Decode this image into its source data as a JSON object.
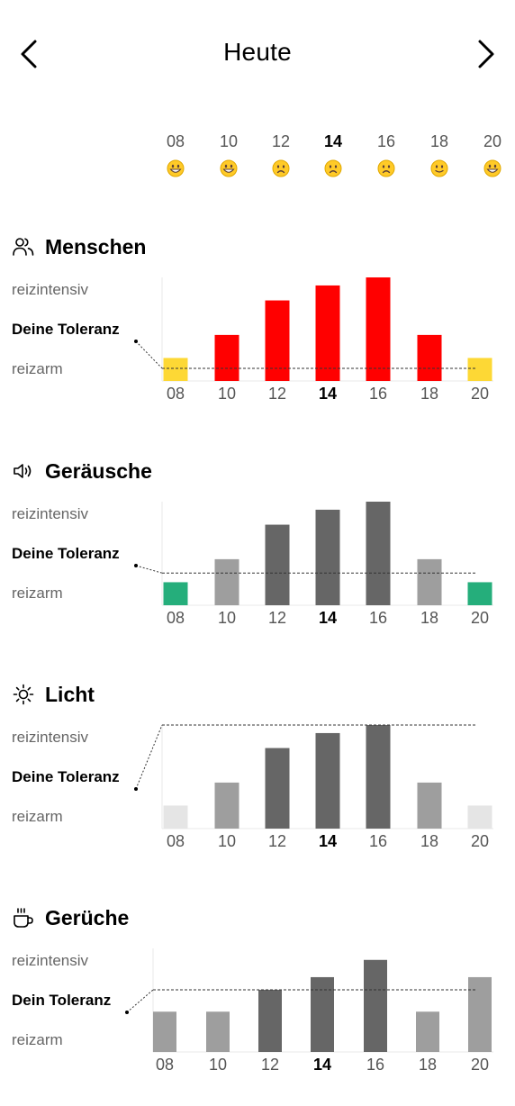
{
  "header": {
    "title": "Heute"
  },
  "timeline": {
    "hours": [
      "08",
      "10",
      "12",
      "14",
      "16",
      "18",
      "20"
    ],
    "current_index": 3,
    "moods": [
      "grinning",
      "grinning",
      "frowning",
      "frowning",
      "frowning",
      "slight-smile",
      "grinning"
    ]
  },
  "sections": [
    {
      "id": "menschen",
      "title": "Menschen",
      "icon": "people-icon",
      "axis_high": "reizintensiv",
      "tolerance_label": "Deine Toleranz",
      "axis_low": "reizarm",
      "chart_data": {
        "type": "bar",
        "categories": [
          "08",
          "10",
          "12",
          "14",
          "16",
          "18",
          "20"
        ],
        "values": [
          2,
          4,
          7,
          8.3,
          9,
          4,
          2
        ],
        "tolerance": 1.1,
        "ylim": [
          0,
          9
        ],
        "colors": [
          "#FDD835",
          "#FF0000",
          "#FF0000",
          "#FF0000",
          "#FF0000",
          "#FF0000",
          "#FDD835"
        ]
      }
    },
    {
      "id": "geraeusche",
      "title": "Geräusche",
      "icon": "speaker-icon",
      "axis_high": "reizintensiv",
      "tolerance_label": "Deine Toleranz",
      "axis_low": "reizarm",
      "chart_data": {
        "type": "bar",
        "categories": [
          "08",
          "10",
          "12",
          "14",
          "16",
          "18",
          "20"
        ],
        "values": [
          2,
          4,
          7,
          8.3,
          9,
          4,
          2
        ],
        "tolerance": 2.8,
        "ylim": [
          0,
          9
        ],
        "colors": [
          "#25AE7B",
          "#9E9E9E",
          "#666666",
          "#666666",
          "#666666",
          "#9E9E9E",
          "#25AE7B"
        ]
      }
    },
    {
      "id": "licht",
      "title": "Licht",
      "icon": "sun-icon",
      "axis_high": "reizintensiv",
      "tolerance_label": "Deine Toleranz",
      "axis_low": "reizarm",
      "chart_data": {
        "type": "bar",
        "categories": [
          "08",
          "10",
          "12",
          "14",
          "16",
          "18",
          "20"
        ],
        "values": [
          2,
          4,
          7,
          8.3,
          9,
          4,
          2
        ],
        "tolerance": 9,
        "ylim": [
          0,
          9
        ],
        "colors": [
          "#E5E5E5",
          "#9E9E9E",
          "#666666",
          "#666666",
          "#666666",
          "#9E9E9E",
          "#E5E5E5"
        ]
      }
    },
    {
      "id": "gerueche",
      "title": "Gerüche",
      "icon": "coffee-cup-icon",
      "axis_high": "reizintensiv",
      "tolerance_label": "Dein Toleranz",
      "axis_low": "reizarm",
      "chart_data": {
        "type": "bar",
        "categories": [
          "08",
          "10",
          "12",
          "14",
          "16",
          "18",
          "20"
        ],
        "values": [
          3.5,
          3.5,
          5.4,
          6.5,
          8,
          3.5,
          6.5
        ],
        "tolerance": 5.4,
        "ylim": [
          0,
          9
        ],
        "colors": [
          "#9E9E9E",
          "#9E9E9E",
          "#666666",
          "#666666",
          "#666666",
          "#9E9E9E",
          "#9E9E9E"
        ]
      }
    }
  ]
}
